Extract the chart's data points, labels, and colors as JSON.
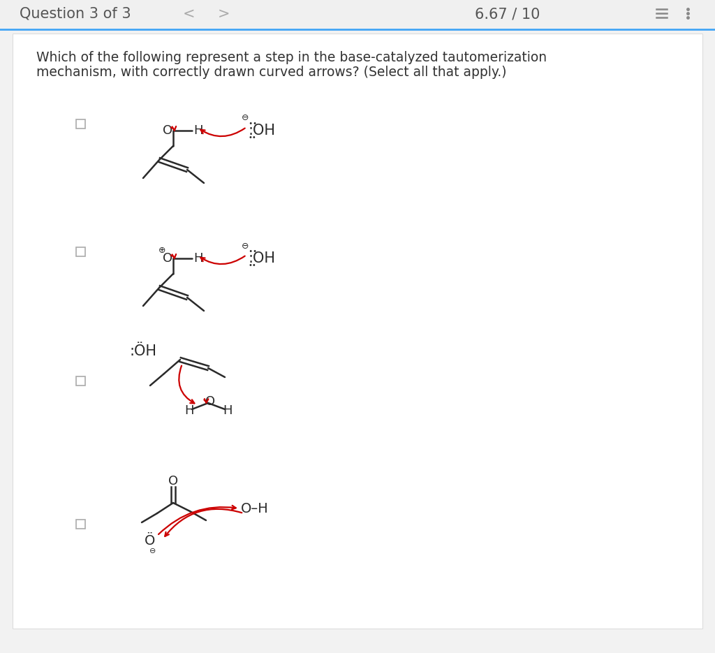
{
  "header_text": "Question 3 of 3",
  "score_text": "6.67 / 10",
  "question_text_line1": "Which of the following represent a step in the base-catalyzed tautomerization",
  "question_text_line2": "mechanism, with correctly drawn curved arrows? (Select all that apply.)",
  "bg_color": "#f2f2f2",
  "panel_color": "#ffffff",
  "text_color": "#333333",
  "arrow_color": "#cc0000",
  "bond_color": "#2a2a2a",
  "header_bg": "#f0f0f0"
}
